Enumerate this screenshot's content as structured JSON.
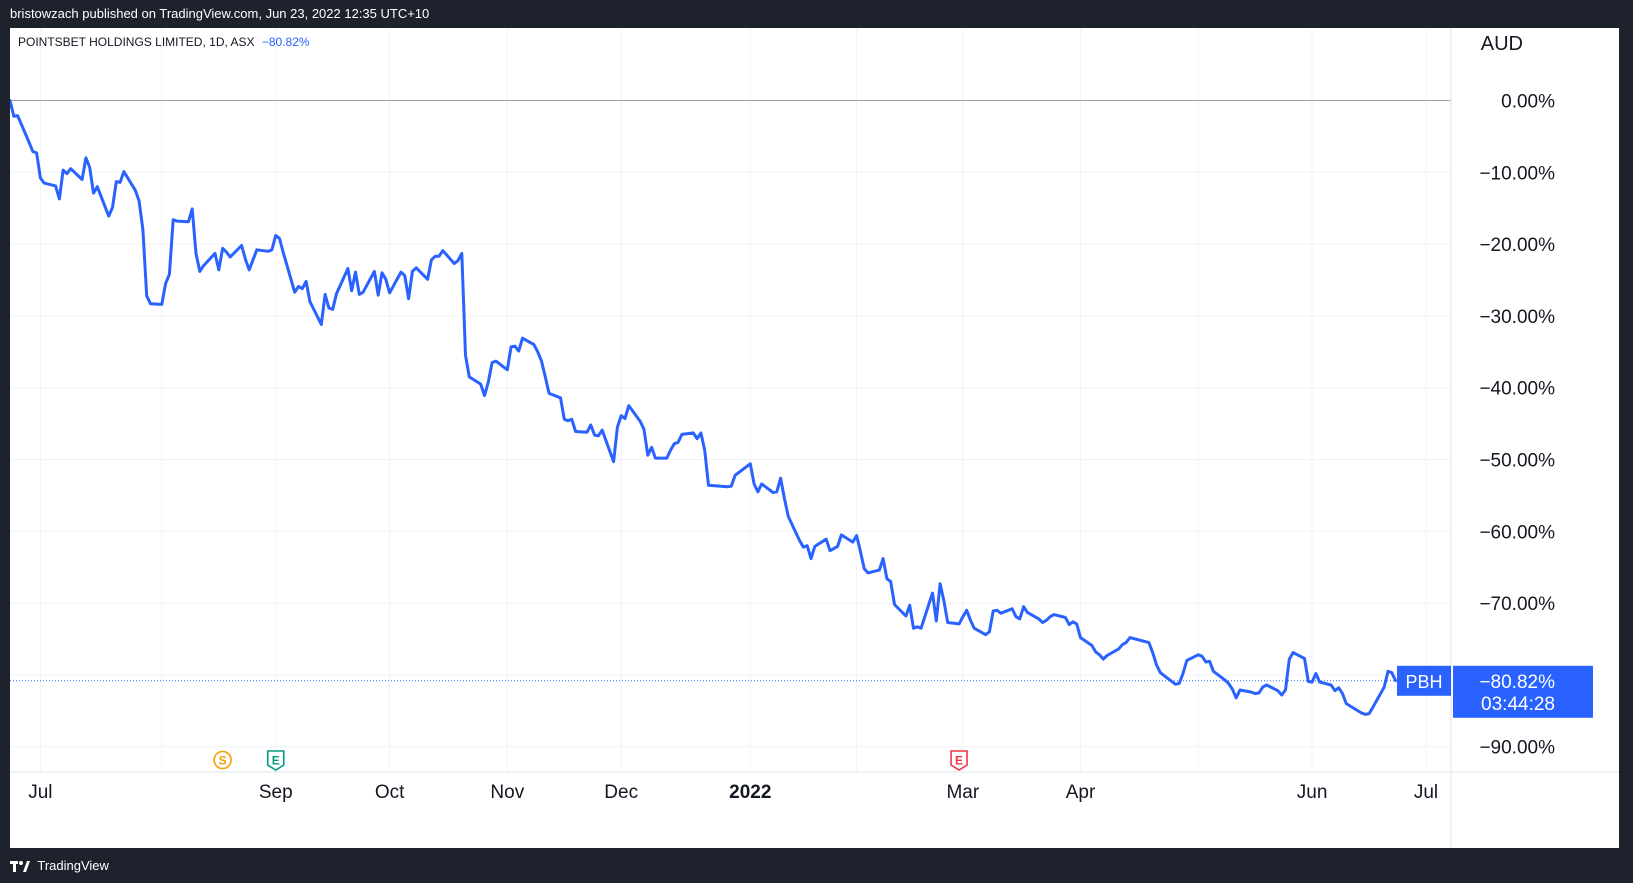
{
  "header": {
    "published_text": "bristowzach published on TradingView.com, Jun 23, 2022 12:35 UTC+10"
  },
  "legend": {
    "symbol_text": "POINTSBET HOLDINGS LIMITED, 1D, ASX",
    "change_text": "−80.82%"
  },
  "currency_label": "AUD",
  "footer": {
    "brand": "TradingView"
  },
  "colors": {
    "line": "#2962ff",
    "label_bg": "#2962ff",
    "event_dividend": "#f59f00",
    "event_earnings_past": "#089981",
    "event_earnings_future": "#f23645",
    "grid": "#f0f3fa",
    "zero_line": "#a0a3ab"
  },
  "chart_data": {
    "type": "line",
    "title": "POINTSBET HOLDINGS LIMITED, 1D, ASX",
    "series": [
      {
        "name": "PBH",
        "x": [
          "2021-06-23",
          "2021-06-24",
          "2021-06-25",
          "2021-06-28",
          "2021-06-29",
          "2021-06-30",
          "2021-07-01",
          "2021-07-02",
          "2021-07-05",
          "2021-07-06",
          "2021-07-07",
          "2021-07-08",
          "2021-07-09",
          "2021-07-12",
          "2021-07-13",
          "2021-07-14",
          "2021-07-15",
          "2021-07-16",
          "2021-07-19",
          "2021-07-20",
          "2021-07-21",
          "2021-07-22",
          "2021-07-23",
          "2021-07-26",
          "2021-07-27",
          "2021-07-28",
          "2021-07-29",
          "2021-07-30",
          "2021-08-02",
          "2021-08-03",
          "2021-08-04",
          "2021-08-05",
          "2021-08-06",
          "2021-08-09",
          "2021-08-10",
          "2021-08-11",
          "2021-08-12",
          "2021-08-13",
          "2021-08-16",
          "2021-08-17",
          "2021-08-18",
          "2021-08-19",
          "2021-08-20",
          "2021-08-23",
          "2021-08-24",
          "2021-08-25",
          "2021-08-26",
          "2021-08-27",
          "2021-08-30",
          "2021-08-31",
          "2021-09-01",
          "2021-09-02",
          "2021-09-03",
          "2021-09-06",
          "2021-09-07",
          "2021-09-08",
          "2021-09-09",
          "2021-09-10",
          "2021-09-13",
          "2021-09-14",
          "2021-09-15",
          "2021-09-16",
          "2021-09-17",
          "2021-09-20",
          "2021-09-21",
          "2021-09-22",
          "2021-09-23",
          "2021-09-24",
          "2021-09-27",
          "2021-09-28",
          "2021-09-29",
          "2021-09-30",
          "2021-10-01",
          "2021-10-04",
          "2021-10-05",
          "2021-10-06",
          "2021-10-07",
          "2021-10-08",
          "2021-10-11",
          "2021-10-12",
          "2021-10-13",
          "2021-10-14",
          "2021-10-15",
          "2021-10-18",
          "2021-10-19",
          "2021-10-20",
          "2021-10-21",
          "2021-10-22",
          "2021-10-25",
          "2021-10-26",
          "2021-10-27",
          "2021-10-28",
          "2021-10-29",
          "2021-11-01",
          "2021-11-02",
          "2021-11-03",
          "2021-11-04",
          "2021-11-05",
          "2021-11-08",
          "2021-11-09",
          "2021-11-10",
          "2021-11-11",
          "2021-11-12",
          "2021-11-15",
          "2021-11-16",
          "2021-11-17",
          "2021-11-18",
          "2021-11-19",
          "2021-11-22",
          "2021-11-23",
          "2021-11-24",
          "2021-11-25",
          "2021-11-26",
          "2021-11-29",
          "2021-11-30",
          "2021-12-01",
          "2021-12-02",
          "2021-12-03",
          "2021-12-06",
          "2021-12-07",
          "2021-12-08",
          "2021-12-09",
          "2021-12-10",
          "2021-12-13",
          "2021-12-14",
          "2021-12-15",
          "2021-12-16",
          "2021-12-17",
          "2021-12-20",
          "2021-12-21",
          "2021-12-22",
          "2021-12-23",
          "2021-12-24",
          "2021-12-29",
          "2021-12-30",
          "2021-12-31",
          "2022-01-04",
          "2022-01-05",
          "2022-01-06",
          "2022-01-07",
          "2022-01-10",
          "2022-01-11",
          "2022-01-12",
          "2022-01-13",
          "2022-01-14",
          "2022-01-17",
          "2022-01-18",
          "2022-01-19",
          "2022-01-20",
          "2022-01-21",
          "2022-01-24",
          "2022-01-25",
          "2022-01-27",
          "2022-01-28",
          "2022-01-31",
          "2022-02-01",
          "2022-02-02",
          "2022-02-03",
          "2022-02-04",
          "2022-02-07",
          "2022-02-08",
          "2022-02-09",
          "2022-02-10",
          "2022-02-11",
          "2022-02-14",
          "2022-02-15",
          "2022-02-16",
          "2022-02-17",
          "2022-02-18",
          "2022-02-21",
          "2022-02-22",
          "2022-02-23",
          "2022-02-24",
          "2022-02-25",
          "2022-02-28",
          "2022-03-01",
          "2022-03-02",
          "2022-03-03",
          "2022-03-04",
          "2022-03-07",
          "2022-03-08",
          "2022-03-09",
          "2022-03-10",
          "2022-03-11",
          "2022-03-14",
          "2022-03-15",
          "2022-03-16",
          "2022-03-17",
          "2022-03-18",
          "2022-03-21",
          "2022-03-22",
          "2022-03-23",
          "2022-03-24",
          "2022-03-25",
          "2022-03-28",
          "2022-03-29",
          "2022-03-30",
          "2022-03-31",
          "2022-04-01",
          "2022-04-04",
          "2022-04-05",
          "2022-04-06",
          "2022-04-07",
          "2022-04-08",
          "2022-04-11",
          "2022-04-12",
          "2022-04-13",
          "2022-04-14",
          "2022-04-19",
          "2022-04-20",
          "2022-04-21",
          "2022-04-22",
          "2022-04-26",
          "2022-04-27",
          "2022-04-28",
          "2022-04-29",
          "2022-05-02",
          "2022-05-03",
          "2022-05-04",
          "2022-05-05",
          "2022-05-06",
          "2022-05-09",
          "2022-05-10",
          "2022-05-11",
          "2022-05-12",
          "2022-05-13",
          "2022-05-16",
          "2022-05-17",
          "2022-05-18",
          "2022-05-19",
          "2022-05-20",
          "2022-05-23",
          "2022-05-24",
          "2022-05-25",
          "2022-05-26",
          "2022-05-27",
          "2022-05-30",
          "2022-05-31",
          "2022-06-01",
          "2022-06-02",
          "2022-06-03",
          "2022-06-06",
          "2022-06-07",
          "2022-06-08",
          "2022-06-09",
          "2022-06-10",
          "2022-06-14",
          "2022-06-15",
          "2022-06-16",
          "2022-06-17",
          "2022-06-20",
          "2022-06-21",
          "2022-06-22",
          "2022-06-23"
        ],
        "values": [
          0,
          -2.2,
          -2.1,
          -5.8,
          -7.1,
          -7.3,
          -10.8,
          -11.5,
          -11.9,
          -13.7,
          -9.7,
          -10.2,
          -9.5,
          -11.0,
          -8.0,
          -9.3,
          -12.9,
          -12.0,
          -16.1,
          -14.9,
          -11.3,
          -11.4,
          -9.9,
          -12.5,
          -14.0,
          -18.0,
          -27.2,
          -28.3,
          -28.4,
          -25.5,
          -24.2,
          -16.6,
          -16.8,
          -16.9,
          -15.1,
          -21.3,
          -23.8,
          -23.0,
          -21.3,
          -23.6,
          -20.6,
          -21.1,
          -21.8,
          -20.2,
          -22.1,
          -23.6,
          -22.2,
          -20.8,
          -21.0,
          -20.8,
          -18.8,
          -19.2,
          -21.2,
          -26.7,
          -25.9,
          -26.2,
          -25.2,
          -28.0,
          -31.2,
          -27.0,
          -28.9,
          -29.1,
          -26.9,
          -23.4,
          -26.5,
          -23.9,
          -27.0,
          -26.7,
          -23.8,
          -27.1,
          -24.0,
          -24.9,
          -26.8,
          -23.9,
          -24.4,
          -27.6,
          -23.8,
          -23.3,
          -24.9,
          -22.2,
          -21.7,
          -21.7,
          -20.9,
          -22.7,
          -22.3,
          -21.3,
          -35.5,
          -38.5,
          -39.5,
          -41.1,
          -39.2,
          -36.5,
          -36.3,
          -37.5,
          -34.3,
          -34.2,
          -34.9,
          -33.1,
          -34.0,
          -35.0,
          -36.3,
          -38.5,
          -40.8,
          -41.4,
          -44.4,
          -44.6,
          -44.4,
          -46.1,
          -46.2,
          -45.2,
          -46.6,
          -46.7,
          -45.9,
          -50.3,
          -45.5,
          -43.9,
          -44.3,
          -42.5,
          -44.7,
          -45.8,
          -49.4,
          -48.3,
          -49.8,
          -49.8,
          -48.7,
          -47.8,
          -47.6,
          -46.5,
          -46.3,
          -47.1,
          -46.3,
          -48.7,
          -53.6,
          -53.8,
          -53.7,
          -52.2,
          -50.6,
          -53.4,
          -54.5,
          -53.4,
          -54.6,
          -54.5,
          -52.6,
          -55.4,
          -57.9,
          -61.3,
          -62.2,
          -62.0,
          -63.8,
          -62.1,
          -61.1,
          -62.7,
          -62.1,
          -60.5,
          -61.5,
          -60.6,
          -62.8,
          -65.2,
          -65.8,
          -65.4,
          -63.8,
          -66.6,
          -67.0,
          -70.2,
          -71.8,
          -70.3,
          -73.5,
          -73.3,
          -73.5,
          -68.6,
          -72.5,
          -67.3,
          -69.7,
          -72.7,
          -72.9,
          -71.9,
          -71.0,
          -72.4,
          -73.5,
          -74.4,
          -74.0,
          -71.1,
          -71.0,
          -71.4,
          -70.8,
          -71.9,
          -72.2,
          -70.5,
          -71.3,
          -72.2,
          -72.7,
          -72.4,
          -71.9,
          -71.6,
          -72.0,
          -73.0,
          -72.6,
          -72.9,
          -74.8,
          -75.9,
          -76.8,
          -77.2,
          -77.8,
          -77.3,
          -76.4,
          -75.8,
          -75.5,
          -74.8,
          -75.5,
          -76.9,
          -78.6,
          -79.7,
          -81.3,
          -81.2,
          -79.8,
          -78.0,
          -77.2,
          -77.4,
          -78.2,
          -78.1,
          -79.5,
          -80.7,
          -81.2,
          -82.0,
          -83.2,
          -82.1,
          -82.4,
          -82.6,
          -82.5,
          -81.7,
          -81.4,
          -82.2,
          -82.8,
          -82.1,
          -77.8,
          -76.9,
          -77.7,
          -80.9,
          -81.0,
          -79.8,
          -81.0,
          -81.4,
          -82.2,
          -81.8,
          -82.6,
          -84.0,
          -85.3,
          -85.5,
          -85.4,
          -84.5,
          -81.7,
          -79.5,
          -79.7,
          -80.8
        ]
      }
    ],
    "xlabel": "",
    "ylabel": "",
    "ylim": [
      -93,
      8
    ],
    "x_tick_labels": [
      {
        "date": "2021-07-01",
        "label": "Jul",
        "bold": false
      },
      {
        "date": "2021-09-01",
        "label": "Sep",
        "bold": false
      },
      {
        "date": "2021-10-01",
        "label": "Oct",
        "bold": false
      },
      {
        "date": "2021-11-01",
        "label": "Nov",
        "bold": false
      },
      {
        "date": "2021-12-01",
        "label": "Dec",
        "bold": false
      },
      {
        "date": "2022-01-04",
        "label": "2022",
        "bold": true
      },
      {
        "date": "2022-03-01",
        "label": "Mar",
        "bold": false
      },
      {
        "date": "2022-04-01",
        "label": "Apr",
        "bold": false
      },
      {
        "date": "2022-06-01",
        "label": "Jun",
        "bold": false
      },
      {
        "date": "2022-07-01",
        "label": "Jul",
        "bold": false
      }
    ],
    "x_grid_dates": [
      "2021-07-01",
      "2021-08-02",
      "2021-09-01",
      "2021-10-01",
      "2021-11-01",
      "2021-12-01",
      "2022-01-04",
      "2022-02-01",
      "2022-03-01",
      "2022-04-01",
      "2022-05-02",
      "2022-06-01",
      "2022-07-01"
    ],
    "y_ticks": [
      {
        "value": 0,
        "label": "0.00%"
      },
      {
        "value": -10,
        "label": "−10.00%"
      },
      {
        "value": -20,
        "label": "−20.00%"
      },
      {
        "value": -30,
        "label": "−30.00%"
      },
      {
        "value": -40,
        "label": "−40.00%"
      },
      {
        "value": -50,
        "label": "−50.00%"
      },
      {
        "value": -60,
        "label": "−60.00%"
      },
      {
        "value": -70,
        "label": "−70.00%"
      },
      {
        "value": -80,
        "label": ""
      },
      {
        "value": -90,
        "label": "−90.00%"
      }
    ],
    "last_value": -80.82,
    "last_value_label": "−80.82%",
    "countdown": "03:44:28",
    "series_label": "PBH",
    "events": [
      {
        "date": "2021-08-18",
        "letter": "S",
        "kind": "dividend"
      },
      {
        "date": "2021-09-01",
        "letter": "E",
        "kind": "earnings_past"
      },
      {
        "date": "2022-02-28",
        "letter": "E",
        "kind": "earnings_future"
      }
    ],
    "grid": true,
    "legend": "top-left"
  }
}
